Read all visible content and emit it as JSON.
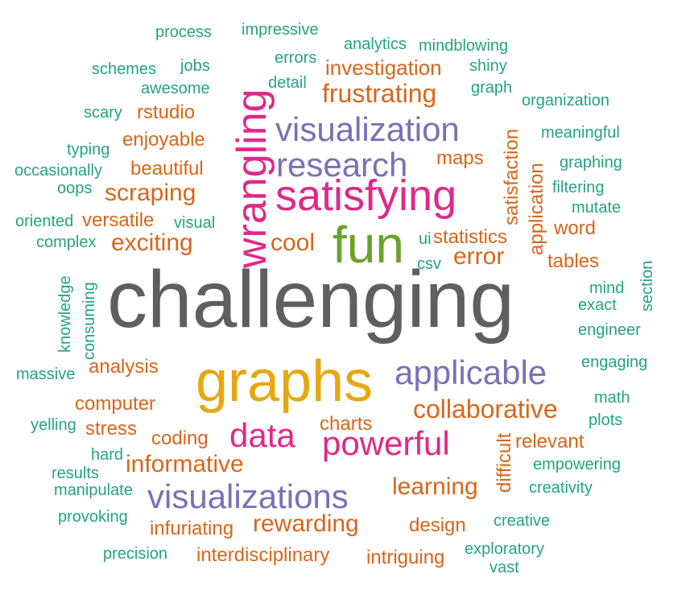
{
  "colors": {
    "gray": "#5f5f5f",
    "gold": "#e6a812",
    "magenta": "#e0288a",
    "purple": "#7a70b8",
    "green": "#6aa22a",
    "orange": "#d9651b",
    "teal": "#23a384"
  },
  "words": [
    {
      "text": "challenging",
      "color": "gray"
    },
    {
      "text": "graphs",
      "color": "gold"
    },
    {
      "text": "fun",
      "color": "green"
    },
    {
      "text": "satisfying",
      "color": "magenta"
    },
    {
      "text": "wrangling",
      "color": "magenta"
    },
    {
      "text": "visualization",
      "color": "purple"
    },
    {
      "text": "research",
      "color": "purple"
    },
    {
      "text": "applicable",
      "color": "purple"
    },
    {
      "text": "visualizations",
      "color": "purple"
    },
    {
      "text": "powerful",
      "color": "magenta"
    },
    {
      "text": "data",
      "color": "magenta"
    },
    {
      "text": "collaborative",
      "color": "orange"
    },
    {
      "text": "informative",
      "color": "orange"
    },
    {
      "text": "learning",
      "color": "orange"
    },
    {
      "text": "rewarding",
      "color": "orange"
    },
    {
      "text": "frustrating",
      "color": "orange"
    },
    {
      "text": "exciting",
      "color": "orange"
    },
    {
      "text": "scraping",
      "color": "orange"
    },
    {
      "text": "error",
      "color": "orange"
    },
    {
      "text": "cool",
      "color": "orange"
    },
    {
      "text": "investigation",
      "color": "orange"
    },
    {
      "text": "beautiful",
      "color": "orange"
    },
    {
      "text": "enjoyable",
      "color": "orange"
    },
    {
      "text": "rstudio",
      "color": "orange"
    },
    {
      "text": "versatile",
      "color": "orange"
    },
    {
      "text": "statistics",
      "color": "orange"
    },
    {
      "text": "maps",
      "color": "orange"
    },
    {
      "text": "word",
      "color": "orange"
    },
    {
      "text": "tables",
      "color": "orange"
    },
    {
      "text": "analysis",
      "color": "orange"
    },
    {
      "text": "computer",
      "color": "orange"
    },
    {
      "text": "stress",
      "color": "orange"
    },
    {
      "text": "coding",
      "color": "orange"
    },
    {
      "text": "charts",
      "color": "orange"
    },
    {
      "text": "relevant",
      "color": "orange"
    },
    {
      "text": "design",
      "color": "orange"
    },
    {
      "text": "infuriating",
      "color": "orange"
    },
    {
      "text": "interdisciplinary",
      "color": "orange"
    },
    {
      "text": "intriguing",
      "color": "orange"
    },
    {
      "text": "satisfaction",
      "color": "orange"
    },
    {
      "text": "application",
      "color": "orange"
    },
    {
      "text": "difficult",
      "color": "orange"
    },
    {
      "text": "process",
      "color": "teal"
    },
    {
      "text": "impressive",
      "color": "teal"
    },
    {
      "text": "analytics",
      "color": "teal"
    },
    {
      "text": "mindblowing",
      "color": "teal"
    },
    {
      "text": "schemes",
      "color": "teal"
    },
    {
      "text": "jobs",
      "color": "teal"
    },
    {
      "text": "errors",
      "color": "teal"
    },
    {
      "text": "shiny",
      "color": "teal"
    },
    {
      "text": "awesome",
      "color": "teal"
    },
    {
      "text": "detail",
      "color": "teal"
    },
    {
      "text": "graph",
      "color": "teal"
    },
    {
      "text": "organization",
      "color": "teal"
    },
    {
      "text": "scary",
      "color": "teal"
    },
    {
      "text": "meaningful",
      "color": "teal"
    },
    {
      "text": "typing",
      "color": "teal"
    },
    {
      "text": "graphing",
      "color": "teal"
    },
    {
      "text": "occasionally",
      "color": "teal"
    },
    {
      "text": "oops",
      "color": "teal"
    },
    {
      "text": "filtering",
      "color": "teal"
    },
    {
      "text": "mutate",
      "color": "teal"
    },
    {
      "text": "oriented",
      "color": "teal"
    },
    {
      "text": "visual",
      "color": "teal"
    },
    {
      "text": "complex",
      "color": "teal"
    },
    {
      "text": "ui",
      "color": "teal"
    },
    {
      "text": "csv",
      "color": "teal"
    },
    {
      "text": "section",
      "color": "teal"
    },
    {
      "text": "mind",
      "color": "teal"
    },
    {
      "text": "exact",
      "color": "teal"
    },
    {
      "text": "engineer",
      "color": "teal"
    },
    {
      "text": "knowledge",
      "color": "teal"
    },
    {
      "text": "consuming",
      "color": "teal"
    },
    {
      "text": "massive",
      "color": "teal"
    },
    {
      "text": "engaging",
      "color": "teal"
    },
    {
      "text": "math",
      "color": "teal"
    },
    {
      "text": "yelling",
      "color": "teal"
    },
    {
      "text": "plots",
      "color": "teal"
    },
    {
      "text": "hard",
      "color": "teal"
    },
    {
      "text": "results",
      "color": "teal"
    },
    {
      "text": "empowering",
      "color": "teal"
    },
    {
      "text": "manipulate",
      "color": "teal"
    },
    {
      "text": "creativity",
      "color": "teal"
    },
    {
      "text": "provoking",
      "color": "teal"
    },
    {
      "text": "creative",
      "color": "teal"
    },
    {
      "text": "exploratory",
      "color": "teal"
    },
    {
      "text": "precision",
      "color": "teal"
    },
    {
      "text": "vast",
      "color": "teal"
    }
  ]
}
